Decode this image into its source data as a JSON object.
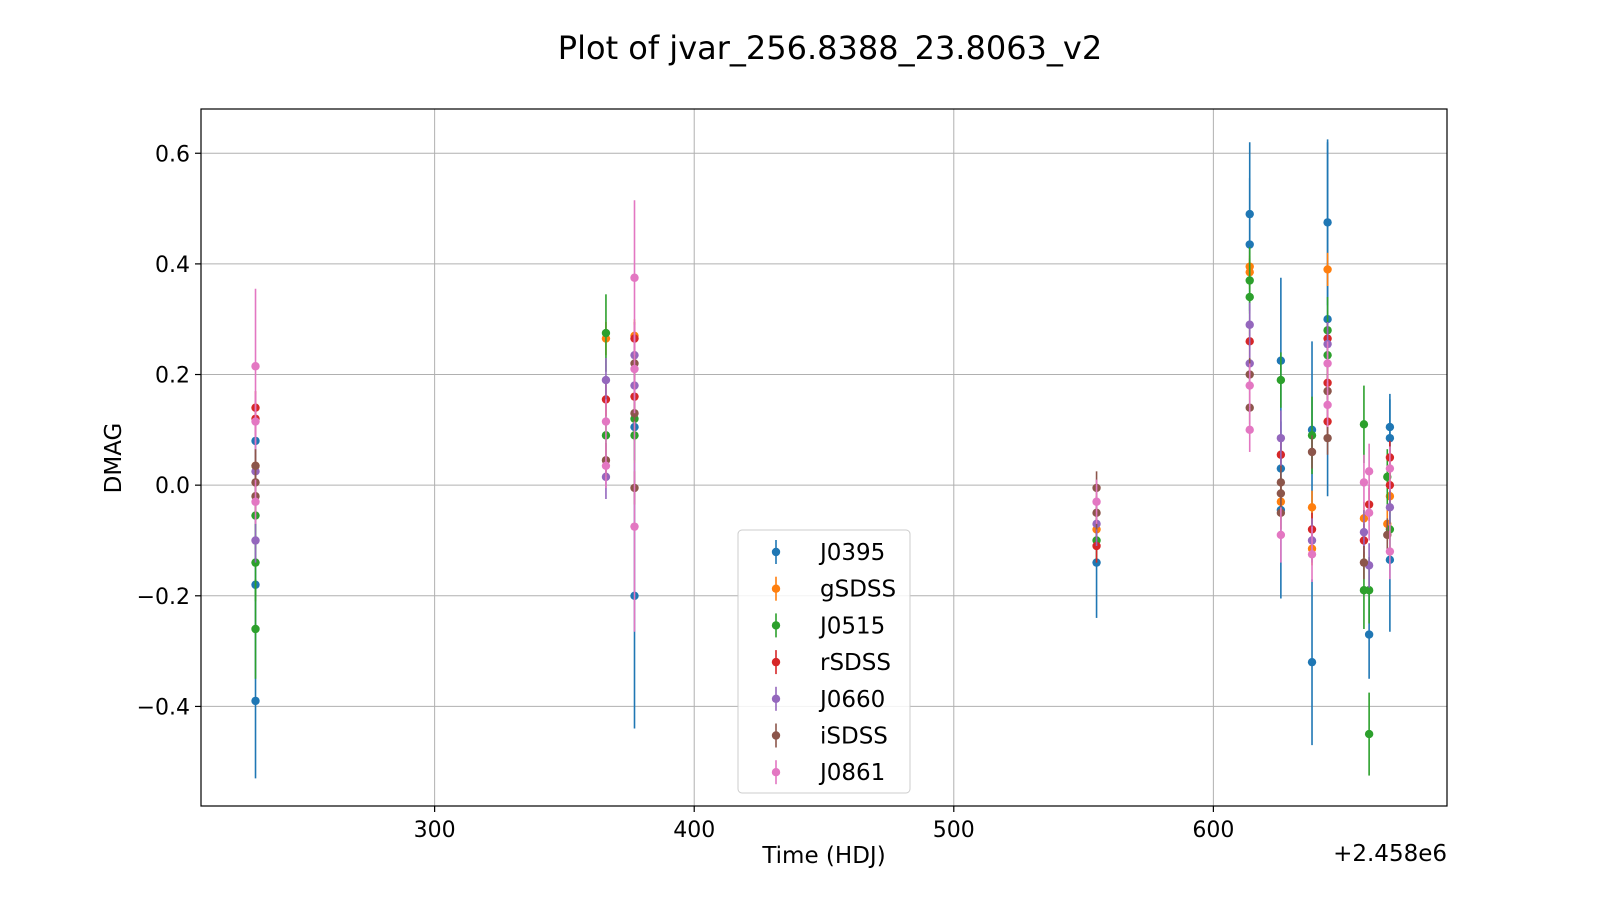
{
  "chart_data": {
    "type": "scatter",
    "title": "Plot of jvar_256.8388_23.8063_v2",
    "xlabel": "Time (HDJ)",
    "ylabel": "DMAG",
    "x_offset_label": "+2.458e6",
    "xlim": [
      2458210,
      2458690
    ],
    "ylim": [
      -0.58,
      0.68
    ],
    "xticks": [
      2458300,
      2458400,
      2458500,
      2458600
    ],
    "xtick_labels": [
      "300",
      "400",
      "500",
      "600"
    ],
    "yticks": [
      -0.4,
      -0.2,
      0.0,
      0.2,
      0.4,
      0.6
    ],
    "ytick_labels": [
      "−0.4",
      "−0.2",
      "0.0",
      "0.2",
      "0.4",
      "0.6"
    ],
    "grid": true,
    "legend_position": "lower-center",
    "series": [
      {
        "name": "J0395",
        "color": "#1f77b4",
        "points": [
          {
            "x": 2458231,
            "y": 0.08,
            "err": 0.06
          },
          {
            "x": 2458231,
            "y": -0.18,
            "err": 0.09
          },
          {
            "x": 2458231,
            "y": -0.39,
            "err": 0.14
          },
          {
            "x": 2458377,
            "y": 0.105,
            "err": 0.06
          },
          {
            "x": 2458377,
            "y": -0.2,
            "err": 0.24
          },
          {
            "x": 2458555,
            "y": -0.14,
            "err": 0.1
          },
          {
            "x": 2458614,
            "y": 0.49,
            "err": 0.13
          },
          {
            "x": 2458614,
            "y": 0.435,
            "err": 0.12
          },
          {
            "x": 2458626,
            "y": 0.225,
            "err": 0.15
          },
          {
            "x": 2458626,
            "y": 0.03,
            "err": 0.05
          },
          {
            "x": 2458626,
            "y": -0.045,
            "err": 0.16
          },
          {
            "x": 2458638,
            "y": 0.1,
            "err": 0.16
          },
          {
            "x": 2458638,
            "y": -0.32,
            "err": 0.15
          },
          {
            "x": 2458644,
            "y": 0.475,
            "err": 0.15
          },
          {
            "x": 2458644,
            "y": 0.3,
            "err": 0.32
          },
          {
            "x": 2458660,
            "y": -0.27,
            "err": 0.08
          },
          {
            "x": 2458668,
            "y": 0.105,
            "err": 0.06
          },
          {
            "x": 2458668,
            "y": 0.085,
            "err": 0.07
          },
          {
            "x": 2458668,
            "y": -0.135,
            "err": 0.13
          }
        ]
      },
      {
        "name": "gSDSS",
        "color": "#ff7f0e",
        "points": [
          {
            "x": 2458231,
            "y": 0.035,
            "err": 0.03
          },
          {
            "x": 2458366,
            "y": 0.265,
            "err": 0.03
          },
          {
            "x": 2458377,
            "y": 0.27,
            "err": 0.03
          },
          {
            "x": 2458555,
            "y": -0.08,
            "err": 0.03
          },
          {
            "x": 2458614,
            "y": 0.395,
            "err": 0.03
          },
          {
            "x": 2458614,
            "y": 0.385,
            "err": 0.03
          },
          {
            "x": 2458626,
            "y": -0.03,
            "err": 0.03
          },
          {
            "x": 2458638,
            "y": -0.04,
            "err": 0.03
          },
          {
            "x": 2458638,
            "y": -0.115,
            "err": 0.03
          },
          {
            "x": 2458644,
            "y": 0.39,
            "err": 0.03
          },
          {
            "x": 2458658,
            "y": -0.06,
            "err": 0.03
          },
          {
            "x": 2458667,
            "y": -0.07,
            "err": 0.03
          },
          {
            "x": 2458668,
            "y": -0.02,
            "err": 0.03
          }
        ]
      },
      {
        "name": "J0515",
        "color": "#2ca02c",
        "points": [
          {
            "x": 2458231,
            "y": -0.055,
            "err": 0.06
          },
          {
            "x": 2458231,
            "y": -0.14,
            "err": 0.07
          },
          {
            "x": 2458231,
            "y": -0.26,
            "err": 0.09
          },
          {
            "x": 2458366,
            "y": 0.275,
            "err": 0.07
          },
          {
            "x": 2458366,
            "y": 0.09,
            "err": 0.06
          },
          {
            "x": 2458377,
            "y": 0.12,
            "err": 0.04
          },
          {
            "x": 2458377,
            "y": 0.09,
            "err": 0.05
          },
          {
            "x": 2458555,
            "y": -0.1,
            "err": 0.04
          },
          {
            "x": 2458614,
            "y": 0.37,
            "err": 0.06
          },
          {
            "x": 2458614,
            "y": 0.34,
            "err": 0.07
          },
          {
            "x": 2458626,
            "y": 0.19,
            "err": 0.05
          },
          {
            "x": 2458638,
            "y": 0.09,
            "err": 0.07
          },
          {
            "x": 2458644,
            "y": 0.28,
            "err": 0.06
          },
          {
            "x": 2458644,
            "y": 0.235,
            "err": 0.06
          },
          {
            "x": 2458658,
            "y": 0.11,
            "err": 0.07
          },
          {
            "x": 2458658,
            "y": -0.19,
            "err": 0.07
          },
          {
            "x": 2458660,
            "y": -0.19,
            "err": 0.06
          },
          {
            "x": 2458660,
            "y": -0.45,
            "err": 0.075
          },
          {
            "x": 2458667,
            "y": 0.015,
            "err": 0.05
          },
          {
            "x": 2458668,
            "y": -0.08,
            "err": 0.05
          }
        ]
      },
      {
        "name": "rSDSS",
        "color": "#d62728",
        "points": [
          {
            "x": 2458231,
            "y": 0.14,
            "err": 0.03
          },
          {
            "x": 2458231,
            "y": 0.12,
            "err": 0.03
          },
          {
            "x": 2458366,
            "y": 0.155,
            "err": 0.03
          },
          {
            "x": 2458377,
            "y": 0.265,
            "err": 0.03
          },
          {
            "x": 2458377,
            "y": 0.16,
            "err": 0.03
          },
          {
            "x": 2458555,
            "y": -0.11,
            "err": 0.03
          },
          {
            "x": 2458614,
            "y": 0.26,
            "err": 0.03
          },
          {
            "x": 2458626,
            "y": 0.055,
            "err": 0.03
          },
          {
            "x": 2458638,
            "y": -0.08,
            "err": 0.03
          },
          {
            "x": 2458644,
            "y": 0.265,
            "err": 0.03
          },
          {
            "x": 2458644,
            "y": 0.185,
            "err": 0.03
          },
          {
            "x": 2458644,
            "y": 0.115,
            "err": 0.03
          },
          {
            "x": 2458658,
            "y": -0.1,
            "err": 0.03
          },
          {
            "x": 2458660,
            "y": -0.035,
            "err": 0.03
          },
          {
            "x": 2458668,
            "y": 0.05,
            "err": 0.03
          },
          {
            "x": 2458668,
            "y": 0.0,
            "err": 0.03
          }
        ]
      },
      {
        "name": "J0660",
        "color": "#9467bd",
        "points": [
          {
            "x": 2458231,
            "y": 0.025,
            "err": 0.04
          },
          {
            "x": 2458231,
            "y": -0.1,
            "err": 0.04
          },
          {
            "x": 2458366,
            "y": 0.19,
            "err": 0.04
          },
          {
            "x": 2458366,
            "y": 0.015,
            "err": 0.04
          },
          {
            "x": 2458377,
            "y": 0.235,
            "err": 0.04
          },
          {
            "x": 2458377,
            "y": 0.18,
            "err": 0.04
          },
          {
            "x": 2458555,
            "y": -0.07,
            "err": 0.04
          },
          {
            "x": 2458614,
            "y": 0.29,
            "err": 0.04
          },
          {
            "x": 2458614,
            "y": 0.22,
            "err": 0.04
          },
          {
            "x": 2458626,
            "y": 0.085,
            "err": 0.05
          },
          {
            "x": 2458638,
            "y": -0.1,
            "err": 0.04
          },
          {
            "x": 2458644,
            "y": 0.255,
            "err": 0.04
          },
          {
            "x": 2458658,
            "y": -0.085,
            "err": 0.04
          },
          {
            "x": 2458660,
            "y": -0.145,
            "err": 0.04
          },
          {
            "x": 2458668,
            "y": -0.04,
            "err": 0.04
          }
        ]
      },
      {
        "name": "iSDSS",
        "color": "#8c564b",
        "points": [
          {
            "x": 2458231,
            "y": 0.035,
            "err": 0.03
          },
          {
            "x": 2458231,
            "y": 0.005,
            "err": 0.03
          },
          {
            "x": 2458231,
            "y": -0.02,
            "err": 0.03
          },
          {
            "x": 2458366,
            "y": 0.045,
            "err": 0.03
          },
          {
            "x": 2458377,
            "y": 0.22,
            "err": 0.03
          },
          {
            "x": 2458377,
            "y": 0.13,
            "err": 0.03
          },
          {
            "x": 2458377,
            "y": -0.005,
            "err": 0.03
          },
          {
            "x": 2458555,
            "y": -0.05,
            "err": 0.03
          },
          {
            "x": 2458555,
            "y": -0.005,
            "err": 0.03
          },
          {
            "x": 2458614,
            "y": 0.2,
            "err": 0.03
          },
          {
            "x": 2458614,
            "y": 0.14,
            "err": 0.03
          },
          {
            "x": 2458626,
            "y": 0.005,
            "err": 0.03
          },
          {
            "x": 2458626,
            "y": -0.015,
            "err": 0.03
          },
          {
            "x": 2458626,
            "y": -0.05,
            "err": 0.03
          },
          {
            "x": 2458638,
            "y": 0.06,
            "err": 0.03
          },
          {
            "x": 2458644,
            "y": 0.17,
            "err": 0.03
          },
          {
            "x": 2458644,
            "y": 0.085,
            "err": 0.03
          },
          {
            "x": 2458658,
            "y": -0.14,
            "err": 0.03
          },
          {
            "x": 2458667,
            "y": -0.09,
            "err": 0.03
          }
        ]
      },
      {
        "name": "J0861",
        "color": "#e377c2",
        "points": [
          {
            "x": 2458231,
            "y": 0.215,
            "err": 0.14
          },
          {
            "x": 2458231,
            "y": 0.115,
            "err": 0.05
          },
          {
            "x": 2458231,
            "y": -0.03,
            "err": 0.04
          },
          {
            "x": 2458366,
            "y": 0.115,
            "err": 0.04
          },
          {
            "x": 2458366,
            "y": 0.035,
            "err": 0.04
          },
          {
            "x": 2458377,
            "y": 0.375,
            "err": 0.14
          },
          {
            "x": 2458377,
            "y": 0.21,
            "err": 0.08
          },
          {
            "x": 2458377,
            "y": -0.075,
            "err": 0.19
          },
          {
            "x": 2458555,
            "y": -0.03,
            "err": 0.04
          },
          {
            "x": 2458614,
            "y": 0.18,
            "err": 0.04
          },
          {
            "x": 2458614,
            "y": 0.1,
            "err": 0.04
          },
          {
            "x": 2458626,
            "y": -0.09,
            "err": 0.05
          },
          {
            "x": 2458638,
            "y": -0.125,
            "err": 0.05
          },
          {
            "x": 2458644,
            "y": 0.22,
            "err": 0.04
          },
          {
            "x": 2458644,
            "y": 0.145,
            "err": 0.04
          },
          {
            "x": 2458658,
            "y": 0.005,
            "err": 0.05
          },
          {
            "x": 2458660,
            "y": 0.025,
            "err": 0.05
          },
          {
            "x": 2458660,
            "y": -0.05,
            "err": 0.05
          },
          {
            "x": 2458668,
            "y": 0.03,
            "err": 0.04
          },
          {
            "x": 2458668,
            "y": -0.12,
            "err": 0.05
          }
        ]
      }
    ]
  }
}
